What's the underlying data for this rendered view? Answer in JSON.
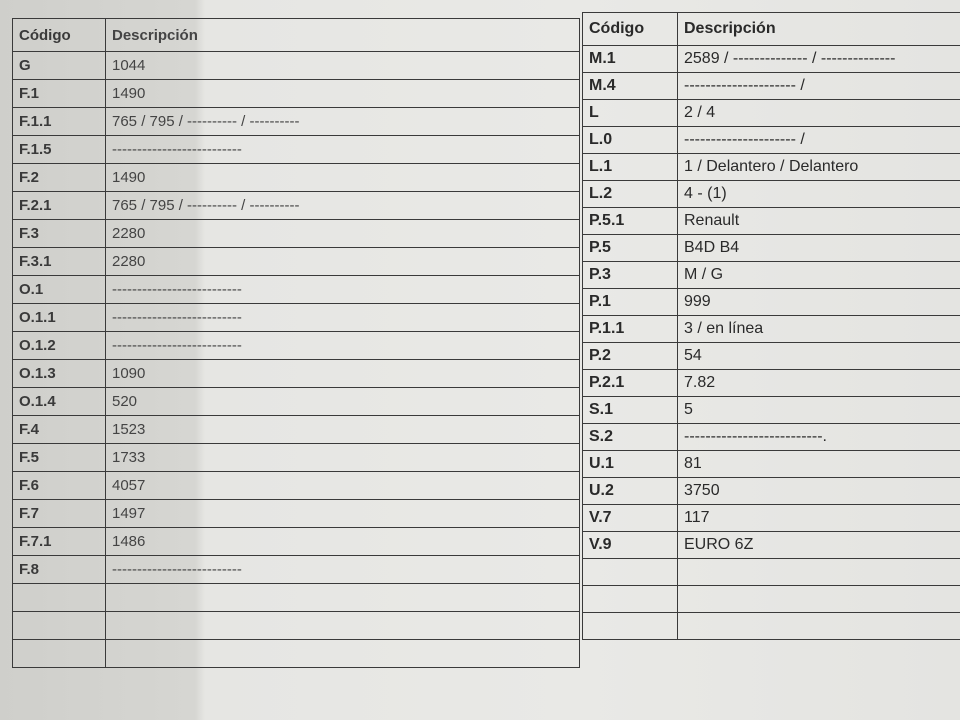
{
  "left_table": {
    "headers": {
      "code": "Código",
      "description": "Descripción"
    },
    "rows": [
      {
        "code": "G",
        "description": "1044"
      },
      {
        "code": "F.1",
        "description": "1490"
      },
      {
        "code": "F.1.1",
        "description": "765 / 795 /  ----------  /  ----------"
      },
      {
        "code": "F.1.5",
        "description": "--------------------------"
      },
      {
        "code": "F.2",
        "description": "1490"
      },
      {
        "code": "F.2.1",
        "description": "765 / 795 /  ----------  /  ----------"
      },
      {
        "code": "F.3",
        "description": "2280"
      },
      {
        "code": "F.3.1",
        "description": "2280"
      },
      {
        "code": "O.1",
        "description": "--------------------------"
      },
      {
        "code": "O.1.1",
        "description": "--------------------------"
      },
      {
        "code": "O.1.2",
        "description": "--------------------------"
      },
      {
        "code": "O.1.3",
        "description": "1090"
      },
      {
        "code": "O.1.4",
        "description": "520"
      },
      {
        "code": "F.4",
        "description": "1523"
      },
      {
        "code": "F.5",
        "description": "1733"
      },
      {
        "code": "F.6",
        "description": "4057"
      },
      {
        "code": "F.7",
        "description": "1497"
      },
      {
        "code": "F.7.1",
        "description": "1486"
      },
      {
        "code": "F.8",
        "description": "--------------------------"
      }
    ]
  },
  "right_table": {
    "headers": {
      "code": "Código",
      "description": "Descripción"
    },
    "rows": [
      {
        "code": "M.1",
        "description": "2589 /  --------------  /  --------------"
      },
      {
        "code": "M.4",
        "description": "--------------------- /"
      },
      {
        "code": "L",
        "description": "2 / 4"
      },
      {
        "code": "L.0",
        "description": "--------------------- /"
      },
      {
        "code": "L.1",
        "description": "1 / Delantero / Delantero"
      },
      {
        "code": "L.2",
        "description": "4 - (1)"
      },
      {
        "code": "P.5.1",
        "description": "Renault"
      },
      {
        "code": "P.5",
        "description": "B4D B4"
      },
      {
        "code": "P.3",
        "description": "M / G"
      },
      {
        "code": "P.1",
        "description": "999"
      },
      {
        "code": "P.1.1",
        "description": "3 / en línea"
      },
      {
        "code": "P.2",
        "description": "54"
      },
      {
        "code": "P.2.1",
        "description": "7.82"
      },
      {
        "code": "S.1",
        "description": "5"
      },
      {
        "code": "S.2",
        "description": "--------------------------."
      },
      {
        "code": "U.1",
        "description": "81"
      },
      {
        "code": "U.2",
        "description": "3750"
      },
      {
        "code": "V.7",
        "description": "117"
      },
      {
        "code": "V.9",
        "description": "EURO 6Z"
      }
    ]
  }
}
